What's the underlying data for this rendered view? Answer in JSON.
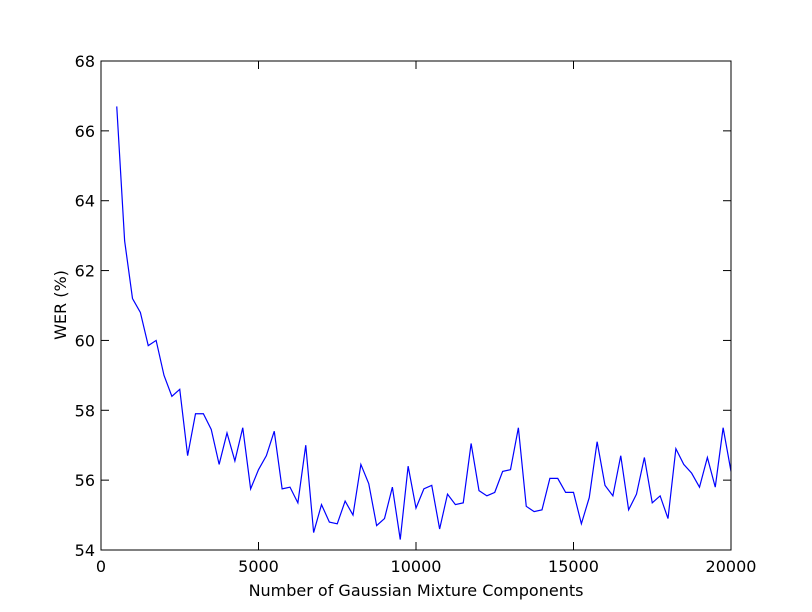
{
  "chart_data": {
    "type": "line",
    "title": "",
    "xlabel": "Number of Gaussian Mixture Components",
    "ylabel": "WER (%)",
    "xlim": [
      0,
      20000
    ],
    "ylim": [
      54,
      68
    ],
    "xticks": [
      0,
      5000,
      10000,
      15000,
      20000
    ],
    "yticks": [
      54,
      56,
      58,
      60,
      62,
      64,
      66,
      68
    ],
    "grid": false,
    "legend": "none",
    "series": [
      {
        "color": "#0000ff",
        "x": [
          500,
          750,
          1000,
          1250,
          1500,
          1750,
          2000,
          2250,
          2500,
          2750,
          3000,
          3250,
          3500,
          3750,
          4000,
          4250,
          4500,
          4750,
          5000,
          5250,
          5500,
          5750,
          6000,
          6250,
          6500,
          6750,
          7000,
          7250,
          7500,
          7750,
          8000,
          8250,
          8500,
          8750,
          9000,
          9250,
          9500,
          9750,
          10000,
          10250,
          10500,
          10750,
          11000,
          11250,
          11500,
          11750,
          12000,
          12250,
          12500,
          12750,
          13000,
          13250,
          13500,
          13750,
          14000,
          14250,
          14500,
          14750,
          15000,
          15250,
          15500,
          15750,
          16000,
          16250,
          16500,
          16750,
          17000,
          17250,
          17500,
          17750,
          18000,
          18250,
          18500,
          18750,
          19000,
          19250,
          19500,
          19750,
          20000
        ],
        "y": [
          66.7,
          62.85,
          61.2,
          60.8,
          59.85,
          60.0,
          59.0,
          58.4,
          58.6,
          56.7,
          57.9,
          57.9,
          57.45,
          56.45,
          57.35,
          56.55,
          57.5,
          55.75,
          56.3,
          56.7,
          57.4,
          55.75,
          55.8,
          55.35,
          57.0,
          54.5,
          55.3,
          54.8,
          54.75,
          55.4,
          55.0,
          56.45,
          55.9,
          54.7,
          54.9,
          55.8,
          54.3,
          56.4,
          55.2,
          55.75,
          55.85,
          54.6,
          55.6,
          55.3,
          55.35,
          57.05,
          55.7,
          55.55,
          55.65,
          56.25,
          56.3,
          57.5,
          55.25,
          55.1,
          55.15,
          56.05,
          56.05,
          55.65,
          55.65,
          54.75,
          55.5,
          57.1,
          55.85,
          55.55,
          56.7,
          55.15,
          55.6,
          56.65,
          55.35,
          55.55,
          54.9,
          56.9,
          56.45,
          56.2,
          55.8,
          56.65,
          55.8,
          57.5,
          56.25
        ]
      }
    ]
  }
}
